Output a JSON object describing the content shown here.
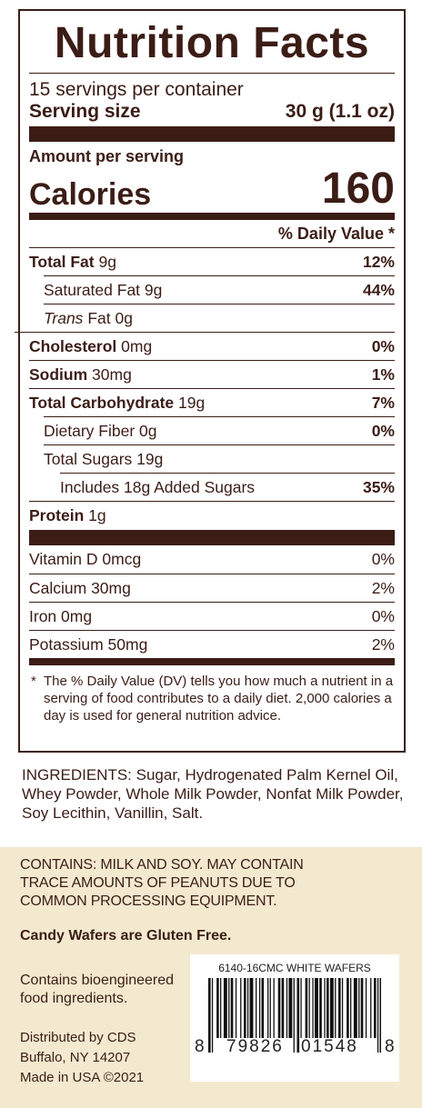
{
  "nutrition": {
    "title": "Nutrition Facts",
    "servings_per_container": "15 servings per container",
    "serving_size_label": "Serving size",
    "serving_size_value": "30 g (1.1 oz)",
    "amount_per_serving": "Amount per serving",
    "calories_label": "Calories",
    "calories_value": "160",
    "daily_value_header": "% Daily Value *",
    "nutrients": [
      {
        "name": "Total Fat",
        "amount": "9g",
        "pct": "12%"
      },
      {
        "name": "Saturated Fat",
        "amount": "9g",
        "pct": "44%"
      },
      {
        "name": "Trans",
        "amount": "Fat 0g",
        "pct": ""
      },
      {
        "name": "Cholesterol",
        "amount": "0mg",
        "pct": "0%"
      },
      {
        "name": "Sodium",
        "amount": "30mg",
        "pct": "1%"
      },
      {
        "name": "Total Carbohydrate",
        "amount": "19g",
        "pct": "7%"
      },
      {
        "name": "Dietary Fiber",
        "amount": "0g",
        "pct": "0%"
      },
      {
        "name": "Total Sugars",
        "amount": "19g",
        "pct": ""
      },
      {
        "name": "Includes 18g Added Sugars",
        "amount": "",
        "pct": "35%"
      },
      {
        "name": "Protein",
        "amount": "1g",
        "pct": ""
      }
    ],
    "vitamins": [
      {
        "name": "Vitamin D 0mcg",
        "pct": "0%"
      },
      {
        "name": "Calcium 30mg",
        "pct": "2%"
      },
      {
        "name": "Iron 0mg",
        "pct": "0%"
      },
      {
        "name": "Potassium 50mg",
        "pct": "2%"
      }
    ],
    "footnote_star": "*",
    "footnote": "The % Daily Value (DV) tells you how much a nutrient in a serving of food contributes to a daily diet. 2,000 calories a day is used for general nutrition advice."
  },
  "ingredients": "INGREDIENTS: Sugar, Hydrogenated Palm Kernel Oil, Whey Powder, Whole Milk Powder, Nonfat Milk Powder, Soy Lecithin, Vanillin, Salt.",
  "contains": "CONTAINS: MILK AND SOY. MAY CONTAIN TRACE AMOUNTS OF PEANUTS DUE TO COMMON PROCESSING EQUIPMENT.",
  "gluten_free": "Candy Wafers are Gluten Free.",
  "bioengineered": "Contains bioengineered food ingredients.",
  "distributor": {
    "line1": "Distributed by CDS",
    "line2": "Buffalo, NY 14207",
    "line3": "Made in USA ©2021"
  },
  "barcode": {
    "title": "6140-16CMC WHITE WAFERS",
    "left_digit": "8",
    "group1": "79826",
    "group2": "01548",
    "right_digit": "8"
  },
  "colors": {
    "ink": "#3b1d16",
    "cream": "#f3e9cf"
  }
}
